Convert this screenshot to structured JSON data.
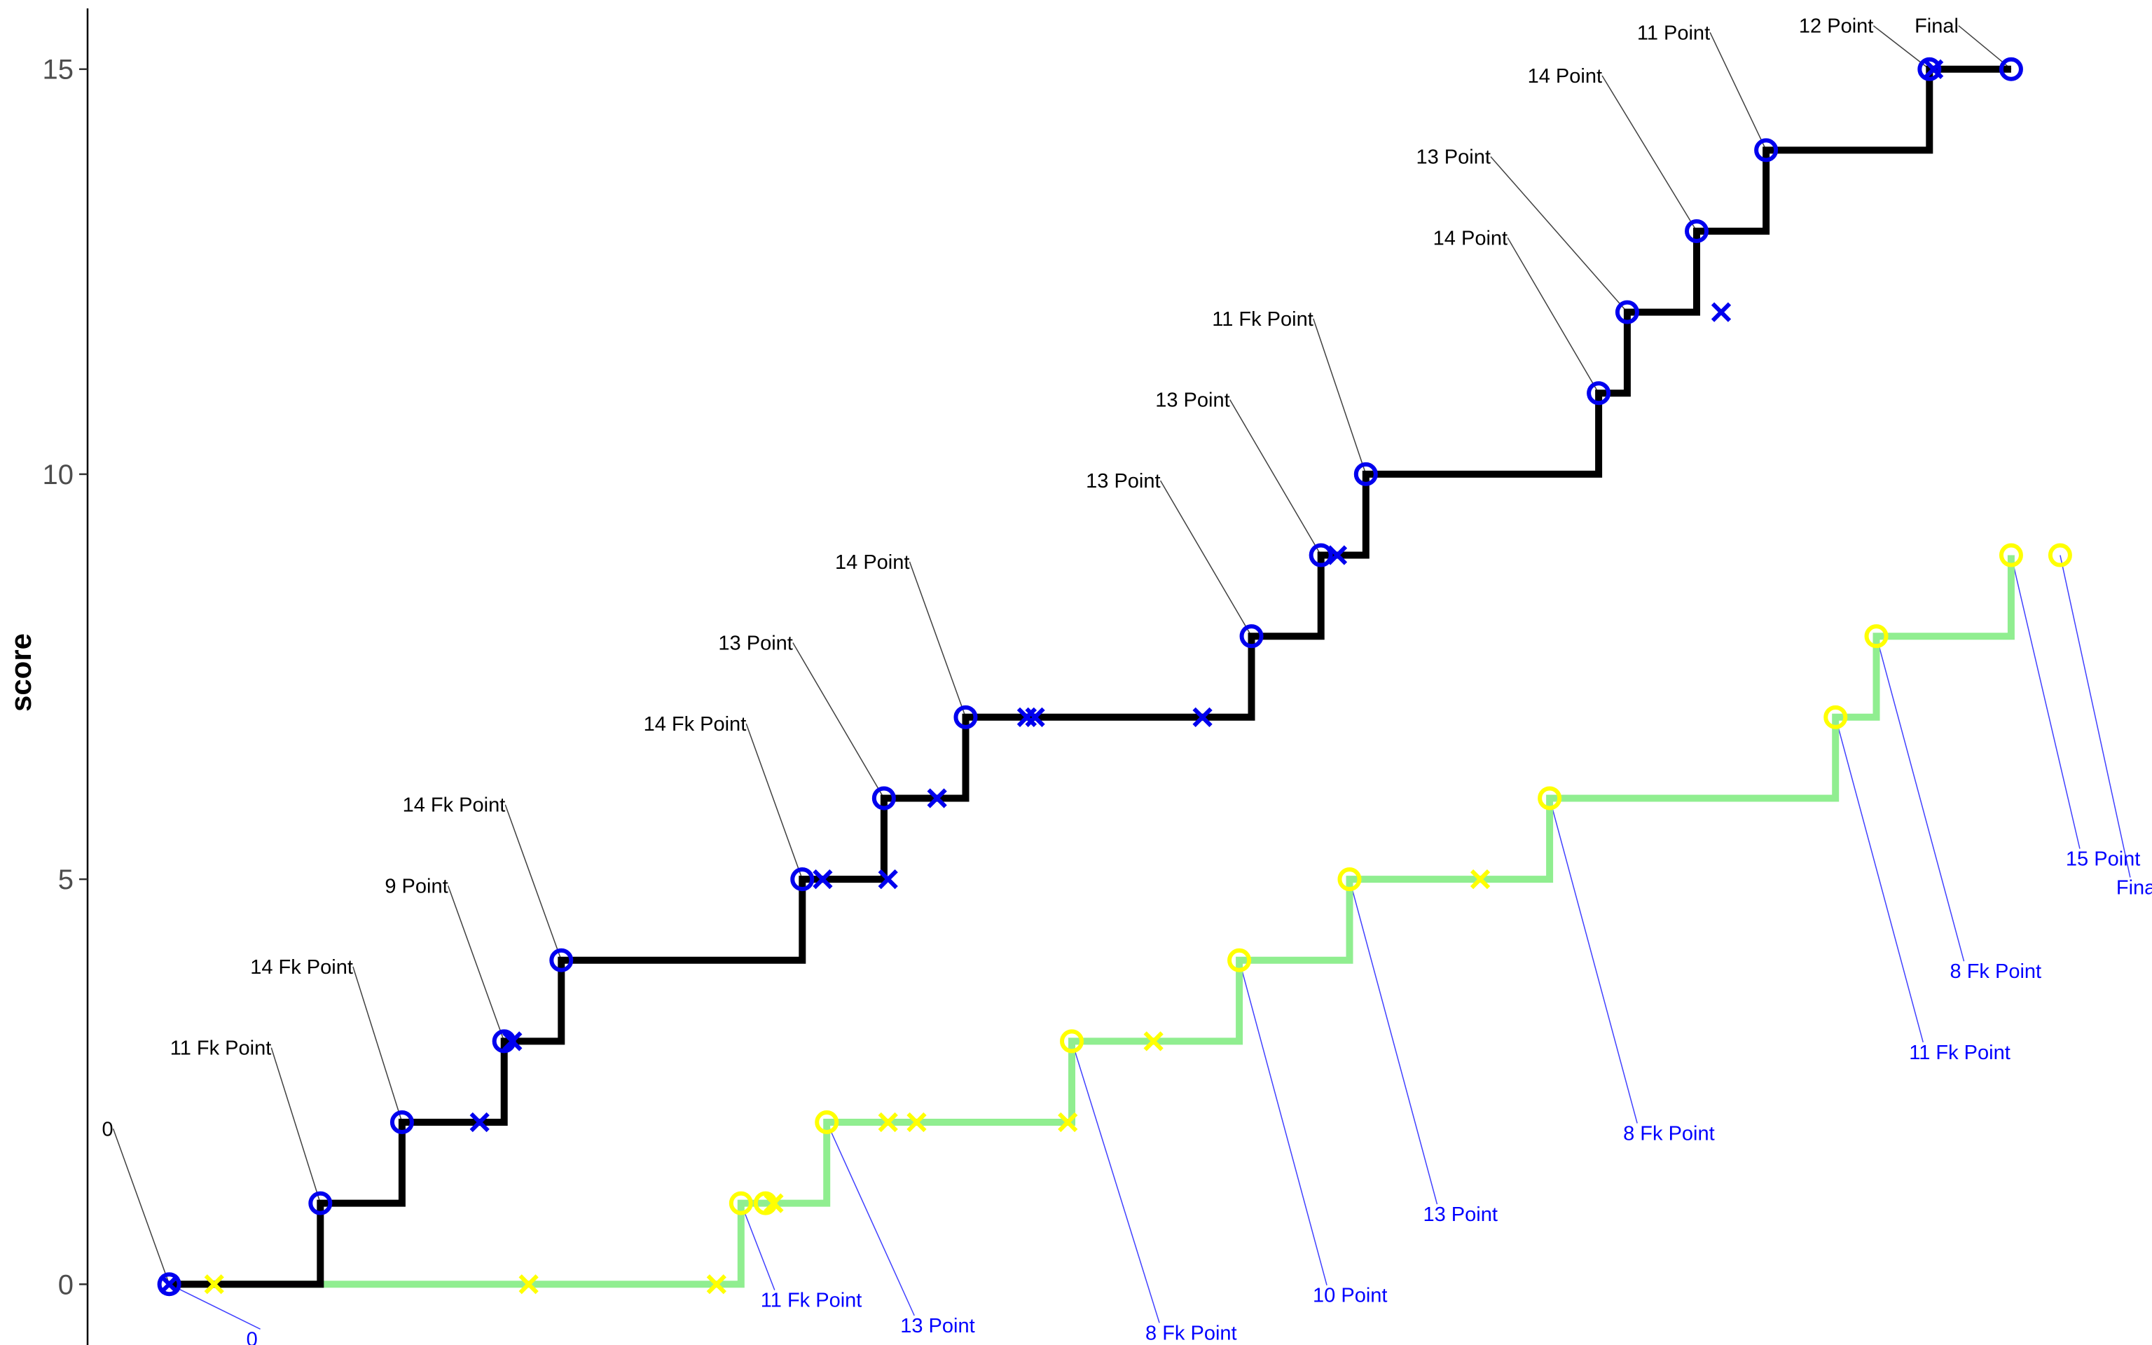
{
  "chart_data": {
    "type": "line",
    "step": true,
    "xlabel": "",
    "ylabel": "score",
    "ylim": [
      -0.75,
      15.75
    ],
    "y_ticks": [
      0,
      5,
      10,
      15
    ],
    "x_ticks": [],
    "grid": false,
    "legend": "none",
    "colors": {
      "series1_line": "#000000",
      "series1_marker": "#0000ee",
      "series2_line": "#90ee90",
      "series2_marker": "#ffff00",
      "series1_label": "#000000",
      "series2_label": "#0000ff"
    },
    "series": [
      {
        "line_x": [
          2.0,
          5.7,
          5.7,
          7.7,
          7.7,
          10.2,
          10.2,
          11.6,
          11.6,
          17.5,
          17.5,
          19.5,
          19.5,
          21.5,
          21.5,
          28.5,
          28.5,
          30.2,
          30.2,
          31.3,
          31.3,
          37.0,
          37.0,
          37.7,
          37.7,
          39.4,
          39.4,
          41.1,
          41.1,
          45.1,
          45.1,
          47.1
        ],
        "line_y": [
          0,
          0,
          1,
          1,
          2,
          2,
          3,
          3,
          4,
          4,
          5,
          5,
          6,
          6,
          7,
          7,
          8,
          8,
          9,
          9,
          10,
          10,
          11,
          11,
          12,
          12,
          13,
          13,
          14,
          14,
          15,
          15
        ],
        "circles": [
          {
            "x": 2.0,
            "y": 0,
            "label": "0"
          },
          {
            "x": 5.7,
            "y": 1,
            "label": "11 Fk Point"
          },
          {
            "x": 7.7,
            "y": 2,
            "label": "14 Fk Point"
          },
          {
            "x": 10.2,
            "y": 3,
            "label": "9 Point"
          },
          {
            "x": 11.6,
            "y": 4,
            "label": "14 Fk Point"
          },
          {
            "x": 17.5,
            "y": 5,
            "label": "14 Fk Point"
          },
          {
            "x": 19.5,
            "y": 6,
            "label": "13 Point"
          },
          {
            "x": 21.5,
            "y": 7,
            "label": "14 Point"
          },
          {
            "x": 28.5,
            "y": 8,
            "label": "13 Point"
          },
          {
            "x": 30.2,
            "y": 9,
            "label": "13 Point"
          },
          {
            "x": 31.3,
            "y": 10,
            "label": "11 Fk Point"
          },
          {
            "x": 37.0,
            "y": 11,
            "label": "14 Point"
          },
          {
            "x": 37.7,
            "y": 12,
            "label": "13 Point"
          },
          {
            "x": 39.4,
            "y": 13,
            "label": "14 Point"
          },
          {
            "x": 41.1,
            "y": 14,
            "label": "11 Point"
          },
          {
            "x": 45.1,
            "y": 15,
            "label": "12 Point"
          },
          {
            "x": 47.1,
            "y": 15,
            "label": "Final"
          }
        ],
        "crosses": [
          {
            "x": 2.0,
            "y": 0
          },
          {
            "x": 9.6,
            "y": 2
          },
          {
            "x": 10.4,
            "y": 3
          },
          {
            "x": 18.0,
            "y": 5
          },
          {
            "x": 19.6,
            "y": 5
          },
          {
            "x": 20.8,
            "y": 6
          },
          {
            "x": 23.0,
            "y": 7
          },
          {
            "x": 23.2,
            "y": 7
          },
          {
            "x": 27.3,
            "y": 7
          },
          {
            "x": 30.6,
            "y": 9
          },
          {
            "x": 40.0,
            "y": 12
          },
          {
            "x": 45.2,
            "y": 15
          }
        ]
      },
      {
        "line_x": [
          2.0,
          16.0,
          16.0,
          18.1,
          18.1,
          24.1,
          24.1,
          28.2,
          28.2,
          30.9,
          30.9,
          35.8,
          35.8,
          42.8,
          42.8,
          43.8,
          43.8,
          47.1,
          47.1
        ],
        "line_y": [
          0,
          0,
          1,
          1,
          2,
          2,
          3,
          3,
          4,
          4,
          5,
          5,
          6,
          6,
          7,
          7,
          8,
          8,
          9
        ],
        "circles": [
          {
            "x": 16.0,
            "y": 1,
            "label": "11 Fk Point"
          },
          {
            "x": 16.6,
            "y": 1,
            "label": ""
          },
          {
            "x": 18.1,
            "y": 2,
            "label": "13 Point"
          },
          {
            "x": 24.1,
            "y": 3,
            "label": "8 Fk Point"
          },
          {
            "x": 28.2,
            "y": 4,
            "label": "10 Point"
          },
          {
            "x": 30.9,
            "y": 5,
            "label": "13 Point"
          },
          {
            "x": 35.8,
            "y": 6,
            "label": "8 Fk Point"
          },
          {
            "x": 42.8,
            "y": 7,
            "label": "11 Fk Point"
          },
          {
            "x": 43.8,
            "y": 8,
            "label": "8 Fk Point"
          },
          {
            "x": 47.1,
            "y": 9,
            "label": "15 Point"
          },
          {
            "x": 48.3,
            "y": 9,
            "label": "Final"
          }
        ],
        "crosses": [
          {
            "x": 3.1,
            "y": 0
          },
          {
            "x": 10.8,
            "y": 0
          },
          {
            "x": 15.4,
            "y": 0
          },
          {
            "x": 16.8,
            "y": 1
          },
          {
            "x": 19.6,
            "y": 2
          },
          {
            "x": 20.3,
            "y": 2
          },
          {
            "x": 24.0,
            "y": 2
          },
          {
            "x": 26.1,
            "y": 3
          },
          {
            "x": 34.1,
            "y": 5
          }
        ],
        "extra_labels": [
          {
            "x": 2.0,
            "y": 0,
            "label": "0"
          }
        ]
      }
    ]
  }
}
